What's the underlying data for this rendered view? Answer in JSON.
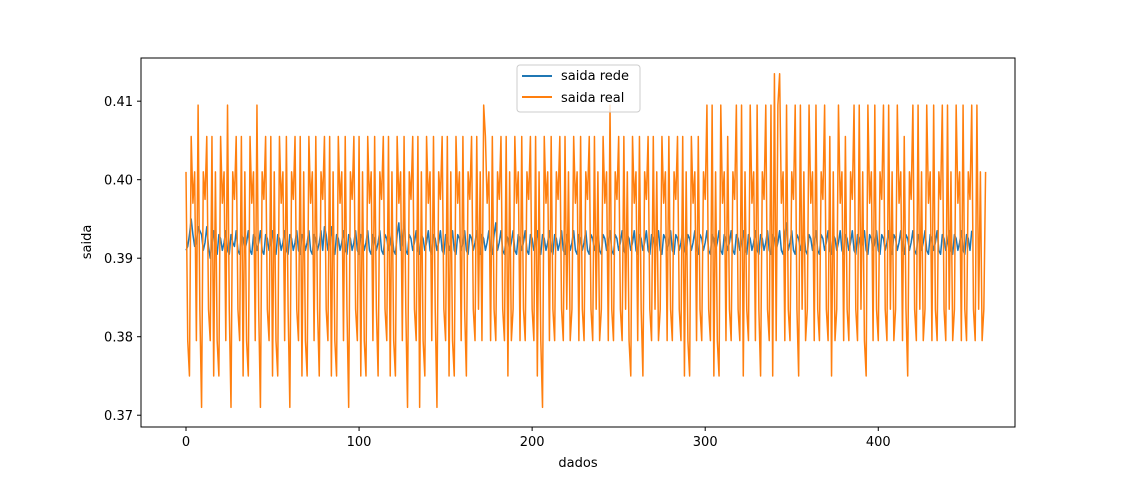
{
  "chart_data": {
    "type": "line",
    "title": "",
    "xlabel": "dados",
    "ylabel": "saida",
    "xlim": [
      -26,
      479
    ],
    "ylim": [
      0.3685,
      0.4155
    ],
    "x_ticks": [
      0,
      100,
      200,
      300,
      400
    ],
    "y_ticks": [
      0.37,
      0.38,
      0.39,
      0.4,
      0.41
    ],
    "y_tick_labels": [
      "0.37",
      "0.38",
      "0.39",
      "0.40",
      "0.41"
    ],
    "grid": false,
    "legend_position": "top-center",
    "n_points": 456,
    "series": [
      {
        "name": "saida rede",
        "color": "#1f77b4",
        "values": [
          0.391,
          0.3915,
          0.393,
          0.395,
          0.393,
          0.3915,
          0.392,
          0.394,
          0.3935,
          0.393,
          0.391,
          0.392,
          0.394,
          0.3915,
          0.39,
          0.392,
          0.3935,
          0.391,
          0.3905,
          0.393,
          0.3925,
          0.391,
          0.392,
          0.3935,
          0.391,
          0.3905,
          0.393,
          0.392,
          0.3915,
          0.3935,
          0.391,
          0.3905,
          0.393,
          0.3925,
          0.391,
          0.392,
          0.3935,
          0.391,
          0.3905,
          0.393,
          0.3925,
          0.391,
          0.392,
          0.3935,
          0.391,
          0.3905,
          0.393,
          0.3925,
          0.391,
          0.392,
          0.3935,
          0.391,
          0.3905,
          0.393,
          0.3925,
          0.391,
          0.392,
          0.3935,
          0.391,
          0.3905,
          0.393,
          0.3925,
          0.391,
          0.392,
          0.3935,
          0.391,
          0.3905,
          0.393,
          0.3925,
          0.391,
          0.392,
          0.3935,
          0.391,
          0.3905,
          0.393,
          0.3925,
          0.391,
          0.392,
          0.3935,
          0.391,
          0.394,
          0.393,
          0.391,
          0.392,
          0.394,
          0.391,
          0.3905,
          0.393,
          0.3925,
          0.391,
          0.392,
          0.3935,
          0.391,
          0.3905,
          0.393,
          0.3925,
          0.391,
          0.392,
          0.3935,
          0.391,
          0.3905,
          0.393,
          0.3925,
          0.391,
          0.392,
          0.3935,
          0.391,
          0.3905,
          0.393,
          0.3925,
          0.391,
          0.392,
          0.3935,
          0.391,
          0.3905,
          0.393,
          0.3925,
          0.391,
          0.392,
          0.3935,
          0.391,
          0.3905,
          0.393,
          0.3945,
          0.391,
          0.392,
          0.3955,
          0.391,
          0.3905,
          0.393,
          0.3925,
          0.391,
          0.392,
          0.3935,
          0.391,
          0.3905,
          0.393,
          0.3925,
          0.391,
          0.392,
          0.3935,
          0.391,
          0.3905,
          0.393,
          0.3925,
          0.391,
          0.392,
          0.3935,
          0.391,
          0.3905,
          0.393,
          0.3925,
          0.391,
          0.392,
          0.3935,
          0.391,
          0.3905,
          0.393,
          0.3925,
          0.391,
          0.392,
          0.3935,
          0.391,
          0.3905,
          0.393,
          0.3925,
          0.391,
          0.392,
          0.3935,
          0.391,
          0.3905,
          0.393,
          0.3925,
          0.391,
          0.392,
          0.3935,
          0.391,
          0.3905,
          0.393,
          0.3945,
          0.391,
          0.392,
          0.3935,
          0.391,
          0.3905,
          0.393,
          0.3925,
          0.391,
          0.392,
          0.3935,
          0.391,
          0.3905,
          0.393,
          0.3925,
          0.391,
          0.392,
          0.3935,
          0.391,
          0.3905,
          0.393,
          0.3925,
          0.391,
          0.392,
          0.3935,
          0.391,
          0.3905,
          0.393,
          0.3925,
          0.391,
          0.392,
          0.3935,
          0.391,
          0.3905,
          0.393,
          0.3925,
          0.391,
          0.392,
          0.3935,
          0.391,
          0.3905,
          0.393,
          0.3925,
          0.391,
          0.392,
          0.3935,
          0.391,
          0.3905,
          0.393,
          0.3925,
          0.391,
          0.392,
          0.3935,
          0.391,
          0.3905,
          0.393,
          0.3925,
          0.391,
          0.392,
          0.3935,
          0.391,
          0.3905,
          0.393,
          0.3925,
          0.391,
          0.392,
          0.3935,
          0.391,
          0.3905,
          0.393,
          0.3925,
          0.391,
          0.392,
          0.3935,
          0.391,
          0.3905,
          0.393,
          0.3925,
          0.391,
          0.392,
          0.3935,
          0.391,
          0.3905,
          0.393,
          0.3925,
          0.391,
          0.392,
          0.3935,
          0.391,
          0.3905,
          0.393,
          0.3925,
          0.391,
          0.392,
          0.3935,
          0.391,
          0.3905,
          0.393,
          0.3925,
          0.391,
          0.392,
          0.3935,
          0.391,
          0.3905,
          0.393,
          0.3925,
          0.391,
          0.392,
          0.3935,
          0.391,
          0.3905,
          0.393,
          0.3925,
          0.391,
          0.392,
          0.3935,
          0.391,
          0.3905,
          0.393,
          0.3925,
          0.391,
          0.392,
          0.3935,
          0.391,
          0.3905,
          0.393,
          0.3925,
          0.391,
          0.392,
          0.3935,
          0.391,
          0.3905,
          0.393,
          0.3925,
          0.391,
          0.392,
          0.3935,
          0.391,
          0.3905,
          0.393,
          0.3925,
          0.391,
          0.392,
          0.3935,
          0.391,
          0.3905,
          0.393,
          0.3925,
          0.391,
          0.392,
          0.3935,
          0.391,
          0.3905,
          0.393,
          0.3925,
          0.391,
          0.392,
          0.3935,
          0.391,
          0.3905,
          0.393,
          0.3925,
          0.391,
          0.392,
          0.3935,
          0.391,
          0.3905,
          0.393,
          0.3945,
          0.391,
          0.392,
          0.3935,
          0.391,
          0.3905,
          0.393,
          0.3925,
          0.391,
          0.392,
          0.3935,
          0.391,
          0.3905,
          0.393,
          0.3925,
          0.391,
          0.392,
          0.3935,
          0.391,
          0.3905,
          0.393,
          0.3925,
          0.391,
          0.392,
          0.3935,
          0.391,
          0.3905,
          0.393,
          0.3925,
          0.391,
          0.392,
          0.3935,
          0.391,
          0.3905,
          0.393,
          0.3925,
          0.391,
          0.392,
          0.3935,
          0.391,
          0.3905,
          0.393,
          0.3925,
          0.391,
          0.392,
          0.3935,
          0.391,
          0.3905,
          0.393,
          0.3925,
          0.391,
          0.392,
          0.3935,
          0.391,
          0.3905,
          0.393,
          0.3925,
          0.391,
          0.392,
          0.3935,
          0.391,
          0.3905,
          0.393,
          0.3925,
          0.391,
          0.392,
          0.3935,
          0.391,
          0.3905,
          0.393,
          0.3925,
          0.391,
          0.392,
          0.3935,
          0.391,
          0.3905,
          0.393,
          0.3925,
          0.391,
          0.392,
          0.3935,
          0.391,
          0.3905,
          0.393,
          0.3925,
          0.391,
          0.392,
          0.3935,
          0.391,
          0.3905,
          0.393,
          0.3925,
          0.391,
          0.392,
          0.3935,
          0.391,
          0.3905,
          0.393,
          0.3925,
          0.391,
          0.392,
          0.3935,
          0.391,
          0.3905,
          0.393,
          0.3925,
          0.391,
          0.3935
        ]
      },
      {
        "name": "saida real",
        "color": "#ff7f0e",
        "values": [
          0.401,
          0.3795,
          0.375,
          0.4055,
          0.397,
          0.401,
          0.3795,
          0.4095,
          0.3835,
          0.371,
          0.401,
          0.3975,
          0.4055,
          0.3835,
          0.3795,
          0.4055,
          0.375,
          0.401,
          0.3795,
          0.375,
          0.4055,
          0.397,
          0.401,
          0.3795,
          0.4095,
          0.3835,
          0.371,
          0.401,
          0.3975,
          0.4055,
          0.3835,
          0.3795,
          0.4055,
          0.375,
          0.401,
          0.3795,
          0.375,
          0.4055,
          0.397,
          0.401,
          0.3795,
          0.4095,
          0.3835,
          0.371,
          0.401,
          0.3975,
          0.4055,
          0.3835,
          0.3795,
          0.4055,
          0.375,
          0.401,
          0.3795,
          0.375,
          0.4055,
          0.397,
          0.401,
          0.3795,
          0.4055,
          0.3835,
          0.371,
          0.401,
          0.3975,
          0.4055,
          0.3835,
          0.3795,
          0.4055,
          0.375,
          0.401,
          0.3795,
          0.375,
          0.4055,
          0.397,
          0.401,
          0.3795,
          0.4055,
          0.3835,
          0.375,
          0.401,
          0.3975,
          0.4055,
          0.3835,
          0.3795,
          0.4055,
          0.375,
          0.401,
          0.3795,
          0.375,
          0.4055,
          0.397,
          0.401,
          0.3795,
          0.4055,
          0.3835,
          0.371,
          0.401,
          0.3975,
          0.4055,
          0.3835,
          0.3795,
          0.4055,
          0.375,
          0.401,
          0.3795,
          0.375,
          0.4055,
          0.397,
          0.401,
          0.3795,
          0.4055,
          0.3835,
          0.375,
          0.401,
          0.3975,
          0.4055,
          0.3835,
          0.3795,
          0.4055,
          0.375,
          0.401,
          0.3795,
          0.375,
          0.4055,
          0.397,
          0.401,
          0.3795,
          0.4055,
          0.3835,
          0.371,
          0.401,
          0.3975,
          0.4055,
          0.3835,
          0.3795,
          0.4055,
          0.371,
          0.401,
          0.3795,
          0.375,
          0.4055,
          0.397,
          0.401,
          0.3795,
          0.4055,
          0.3835,
          0.371,
          0.401,
          0.3975,
          0.4055,
          0.3835,
          0.3795,
          0.4055,
          0.375,
          0.401,
          0.3795,
          0.375,
          0.4055,
          0.397,
          0.401,
          0.3795,
          0.4055,
          0.3835,
          0.375,
          0.401,
          0.3975,
          0.4055,
          0.3835,
          0.3795,
          0.4055,
          0.3835,
          0.401,
          0.3795,
          0.4095,
          0.4055,
          0.397,
          0.401,
          0.3795,
          0.4055,
          0.3835,
          0.3795,
          0.401,
          0.3975,
          0.4055,
          0.3835,
          0.3795,
          0.4055,
          0.375,
          0.401,
          0.3795,
          0.3835,
          0.4055,
          0.397,
          0.401,
          0.3795,
          0.4055,
          0.3835,
          0.3795,
          0.401,
          0.3975,
          0.4055,
          0.3835,
          0.3795,
          0.4055,
          0.375,
          0.401,
          0.3795,
          0.371,
          0.4055,
          0.397,
          0.401,
          0.3795,
          0.4055,
          0.3835,
          0.3795,
          0.401,
          0.3975,
          0.4055,
          0.3835,
          0.3795,
          0.4055,
          0.3835,
          0.401,
          0.3795,
          0.3835,
          0.4055,
          0.397,
          0.401,
          0.3795,
          0.4055,
          0.3835,
          0.3795,
          0.401,
          0.3975,
          0.4055,
          0.3835,
          0.3795,
          0.4055,
          0.3835,
          0.401,
          0.3795,
          0.3835,
          0.4055,
          0.397,
          0.401,
          0.3795,
          0.4095,
          0.3835,
          0.3795,
          0.401,
          0.3975,
          0.4055,
          0.3835,
          0.3795,
          0.4055,
          0.3835,
          0.401,
          0.3795,
          0.375,
          0.4055,
          0.397,
          0.401,
          0.3795,
          0.4055,
          0.3835,
          0.375,
          0.401,
          0.3975,
          0.4055,
          0.3835,
          0.3795,
          0.4055,
          0.3835,
          0.401,
          0.3795,
          0.3835,
          0.4055,
          0.397,
          0.401,
          0.3795,
          0.4055,
          0.3835,
          0.3795,
          0.401,
          0.3975,
          0.4055,
          0.3835,
          0.3795,
          0.4055,
          0.375,
          0.401,
          0.3795,
          0.375,
          0.4055,
          0.397,
          0.401,
          0.3795,
          0.4055,
          0.3835,
          0.3795,
          0.401,
          0.3975,
          0.4095,
          0.3835,
          0.3795,
          0.4095,
          0.375,
          0.401,
          0.3795,
          0.375,
          0.4095,
          0.397,
          0.401,
          0.3795,
          0.4055,
          0.3835,
          0.3795,
          0.401,
          0.3975,
          0.4095,
          0.3835,
          0.3795,
          0.4095,
          0.375,
          0.401,
          0.3835,
          0.3795,
          0.4095,
          0.397,
          0.401,
          0.3795,
          0.4095,
          0.3835,
          0.375,
          0.401,
          0.3975,
          0.4095,
          0.3835,
          0.3795,
          0.4095,
          0.375,
          0.4135,
          0.3795,
          0.4095,
          0.4135,
          0.397,
          0.401,
          0.3795,
          0.4095,
          0.3835,
          0.3795,
          0.401,
          0.3975,
          0.4095,
          0.3835,
          0.375,
          0.4095,
          0.3835,
          0.401,
          0.3795,
          0.3835,
          0.4095,
          0.397,
          0.401,
          0.3795,
          0.4095,
          0.3835,
          0.3795,
          0.401,
          0.3975,
          0.4095,
          0.3835,
          0.3795,
          0.4055,
          0.375,
          0.401,
          0.3795,
          0.3835,
          0.4095,
          0.397,
          0.401,
          0.3795,
          0.4055,
          0.3835,
          0.3795,
          0.401,
          0.3975,
          0.4095,
          0.3835,
          0.3795,
          0.4095,
          0.3835,
          0.401,
          0.3795,
          0.375,
          0.4095,
          0.397,
          0.401,
          0.3795,
          0.4095,
          0.3835,
          0.3795,
          0.401,
          0.3975,
          0.4095,
          0.3835,
          0.3795,
          0.4095,
          0.3835,
          0.401,
          0.3795,
          0.3835,
          0.4095,
          0.397,
          0.401,
          0.3795,
          0.4055,
          0.3835,
          0.375,
          0.401,
          0.3975,
          0.4095,
          0.3835,
          0.3795,
          0.4095,
          0.3835,
          0.401,
          0.3795,
          0.3835,
          0.4095,
          0.397,
          0.401,
          0.3795,
          0.4095,
          0.3835,
          0.3795,
          0.401,
          0.3975,
          0.4095,
          0.3835,
          0.3795,
          0.4095,
          0.3835,
          0.401,
          0.3795,
          0.3835,
          0.4095,
          0.397,
          0.401,
          0.3795,
          0.4095,
          0.3835,
          0.3795,
          0.401,
          0.3975,
          0.4095,
          0.3835,
          0.3795,
          0.4095,
          0.3835,
          0.401,
          0.3795,
          0.3835,
          0.401
        ]
      }
    ]
  }
}
